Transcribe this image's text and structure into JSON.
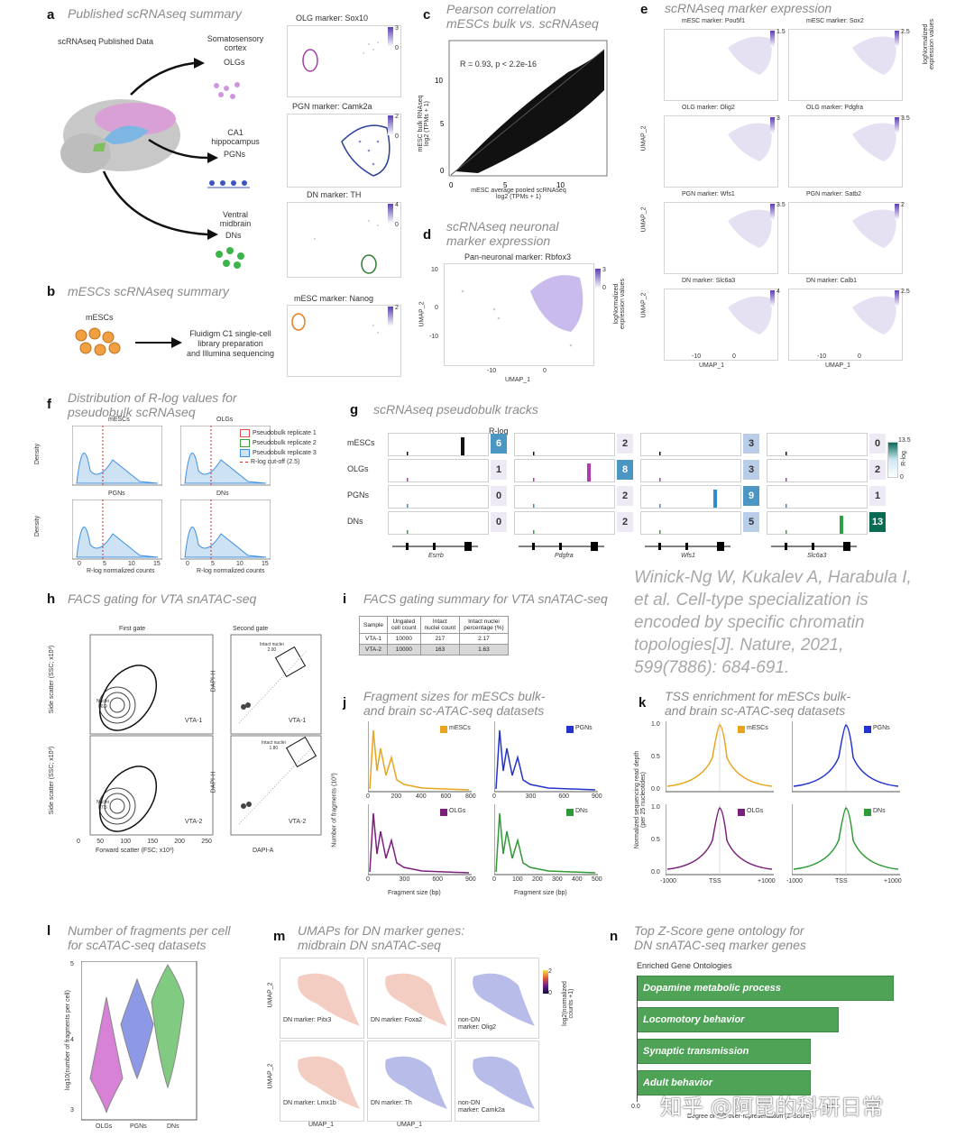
{
  "panels": {
    "a": {
      "letter": "a",
      "title": "Published scRNAseq summary",
      "data_label": "scRNAseq Published Data",
      "groups": [
        {
          "region": "Somatosensory\ncortex",
          "cell": "OLGs"
        },
        {
          "region": "CA1\nhippocampus",
          "cell": "PGNs"
        },
        {
          "region": "Ventral\nmidbrain",
          "cell": "DNs"
        }
      ],
      "markers": [
        "OLG marker: Sox10",
        "PGN marker: Camk2a",
        "DN marker: TH"
      ],
      "scale_max": [
        "3",
        "2",
        "4"
      ],
      "scale_min": "0"
    },
    "b": {
      "letter": "b",
      "title": "mESCs scRNAseq summary",
      "cell": "mESCs",
      "process": "Fluidigm C1 single-cell\nlibrary preparation\nand Illumina sequencing",
      "marker": "mESC marker: Nanog",
      "scale_max": "2"
    },
    "c": {
      "letter": "c",
      "title": "Pearson correlation\nmESCs bulk vs. scRNAseq",
      "annotation": "R = 0.93, p < 2.2e-16",
      "xlabel": "mESC average pooled scRNAseq\nlog2 (TPMs + 1)",
      "ylabel": "mESC bulk RNAseq\nlog2 (TPMs + 1)",
      "xticks": [
        "0",
        "5",
        "10"
      ],
      "yticks": [
        "0",
        "5",
        "10"
      ]
    },
    "d": {
      "letter": "d",
      "title": "scRNAseq neuronal\nmarker expression",
      "marker": "Pan-neuronal marker: Rbfox3",
      "scale_max": "3",
      "scale_min": "0",
      "scale_label": "logNormalized\nexpression values",
      "xlabel": "UMAP_1",
      "ylabel": "UMAP_2",
      "xticks": [
        "-10",
        "0"
      ],
      "yticks": [
        "10",
        "0",
        "-10"
      ]
    },
    "e": {
      "letter": "e",
      "title": "scRNAseq marker expression",
      "markers": [
        "mESC marker: Pou5f1",
        "mESC marker: Sox2",
        "OLG marker: Olig2",
        "OLG marker: Pdgfra",
        "PGN marker: Wfs1",
        "PGN marker: Satb2",
        "DN marker: Slc6a3",
        "DN marker: Calb1"
      ],
      "scale_max": [
        "1.5",
        "2.5",
        "3",
        "3.5",
        "3.5",
        "2",
        "4",
        "2.5"
      ],
      "scale_label": "logNormalized\nexpression values",
      "xlabel": "UMAP_1",
      "ylabel": "UMAP_2",
      "xticks": [
        "-10",
        "0"
      ],
      "yticks": [
        "10",
        "0",
        "-10"
      ]
    },
    "f": {
      "letter": "f",
      "title": "Distribution of R-log values for\npseudobulk scRNAseq",
      "subplots": [
        "mESCs",
        "OLGs",
        "PGNs",
        "DNs"
      ],
      "legend": [
        "Pseudobulk replicate 1",
        "Pseudobulk replicate 2",
        "Pseudobulk replicate 3",
        "R-log cut-off (2.5)"
      ],
      "xlabel": "R-log normalized counts",
      "ylabel": "Density",
      "xticks": [
        "0",
        "5",
        "10",
        "15"
      ]
    },
    "g": {
      "letter": "g",
      "title": "scRNAseq pseudobulk tracks",
      "rlog_label": "R-log",
      "rows": [
        "mESCs",
        "OLGs",
        "PGNs",
        "DNs"
      ],
      "genes": [
        "Esrrb",
        "Pdgfra",
        "Wfs1",
        "Slc6a3"
      ],
      "values": [
        [
          "6",
          "2",
          "3",
          "0"
        ],
        [
          "1",
          "8",
          "3",
          "2"
        ],
        [
          "0",
          "2",
          "9",
          "1"
        ],
        [
          "0",
          "2",
          "5",
          "13"
        ]
      ],
      "scale_max": "13.5",
      "scale_min": "0",
      "scale_label": "R-log"
    },
    "h": {
      "letter": "h",
      "title": "FACS gating for VTA snATAC-seq",
      "first_gate": "First gate",
      "second_gate": "Second gate",
      "gate_nuclei": [
        "Nuclei\n86.9",
        "Nuclei\n87.5"
      ],
      "gate_intact": [
        "Intact nuclei\n2.00",
        "Intact nuclei\n1.80"
      ],
      "samples": [
        "VTA-1",
        "VTA-2"
      ],
      "xlabel_left": "Forward scatter (FSC; x10³)",
      "ylabel_left": "Side scatter (SSC; x10³)",
      "xlabel_right": "DAPI-A",
      "ylabel_right": "DAPI-H",
      "yticks_left": [
        "250",
        "200",
        "150",
        "100",
        "50",
        "0"
      ],
      "xticks_left": [
        "0",
        "50",
        "100",
        "150",
        "200",
        "250"
      ],
      "ticks_right": [
        "10⁵",
        "10⁴",
        "10³",
        "0",
        "-10³"
      ]
    },
    "i": {
      "letter": "i",
      "title": "FACS gating summary for VTA snATAC-seq",
      "headers": [
        "Sample",
        "Ungated\ncell count",
        "Intact\nnuclei count",
        "Intact nuclei\npercentage (%)"
      ],
      "rows": [
        [
          "VTA-1",
          "10000",
          "217",
          "2.17"
        ],
        [
          "VTA-2",
          "10000",
          "163",
          "1.63"
        ]
      ]
    },
    "j": {
      "letter": "j",
      "title": "Fragment sizes for mESCs bulk-\nand brain sc-ATAC-seq datasets",
      "ylabel": "Number of fragments (10³)",
      "xlabel": "Fragment size (bp)",
      "subplots": [
        {
          "name": "mESCs",
          "color": "#e8a51b",
          "xticks": [
            "0",
            "200",
            "400",
            "600",
            "800"
          ],
          "yticks": [
            "40",
            "20",
            "0"
          ]
        },
        {
          "name": "PGNs",
          "color": "#2233cc",
          "xticks": [
            "0",
            "300",
            "600",
            "900"
          ],
          "yticks": [
            "40",
            "30",
            "20",
            "10",
            "0"
          ]
        },
        {
          "name": "OLGs",
          "color": "#7a1f7a",
          "xticks": [
            "0",
            "300",
            "600",
            "900"
          ],
          "yticks": [
            "15",
            "10",
            "5",
            "0"
          ]
        },
        {
          "name": "DNs",
          "color": "#2e9a35",
          "xticks": [
            "0",
            "100",
            "200",
            "300",
            "400",
            "500"
          ],
          "yticks": [
            "20",
            "15",
            "10",
            "5",
            "0"
          ]
        }
      ]
    },
    "k": {
      "letter": "k",
      "title": "TSS enrichment for mESCs bulk-\nand brain sc-ATAC-seq datasets",
      "ylabel": "Normalized sequencing read depth\n(per 25 nucleotides)",
      "xticks": [
        "-1000",
        "TSS",
        "+1000"
      ],
      "yticks": [
        "1.0",
        "0.5",
        "0.0"
      ],
      "subplots": [
        {
          "name": "mESCs",
          "color": "#e8a51b"
        },
        {
          "name": "PGNs",
          "color": "#2233cc"
        },
        {
          "name": "OLGs",
          "color": "#7a1f7a"
        },
        {
          "name": "DNs",
          "color": "#2e9a35"
        }
      ]
    },
    "l": {
      "letter": "l",
      "title": "Number of fragments per cell\nfor scATAC-seq datasets",
      "ylabel": "log10(number of fragments per cell)",
      "groups": [
        "OLGs",
        "PGNs",
        "DNs"
      ],
      "yticks": [
        "5",
        "4",
        "3"
      ]
    },
    "m": {
      "letter": "m",
      "title": "UMAPs for DN marker genes:\nmidbrain DN snATAC-seq",
      "markers": [
        "DN marker: Pitx3",
        "DN marker: Foxa2",
        "non-DN\nmarker: Olig2",
        "DN marker: Lmx1b",
        "DN marker: Th",
        "non-DN\nmarker: Camk2a"
      ],
      "scale_label": "log2(normalized\ncounts +1)",
      "scale_max": "2",
      "scale_min": "0",
      "xlabel": "UMAP_1",
      "ylabel": "UMAP_2"
    },
    "n": {
      "letter": "n",
      "title": "Top Z-Score gene ontology for\nDN snATAC-seq marker genes",
      "subtitle": "Enriched Gene Ontologies",
      "bars": [
        {
          "label": "Dopamine metabolic process",
          "value": 2.8
        },
        {
          "label": "Locomotory behavior",
          "value": 2.2
        },
        {
          "label": "Synaptic transmission",
          "value": 1.9
        },
        {
          "label": "Adult behavior",
          "value": 1.9
        }
      ],
      "xlabel": "Degree of GO over-representation (Z-Score)",
      "xticks": [
        "0.0",
        "1.5"
      ]
    }
  },
  "citation": "Winick-Ng W, Kukalev A, Harabula I,\net al. Cell-type specialization is\nencoded by specific chromatin\ntopologies[J]. Nature, 2021,\n599(7886): 684-691.",
  "watermark": "知乎 @阿昆的科研日常"
}
